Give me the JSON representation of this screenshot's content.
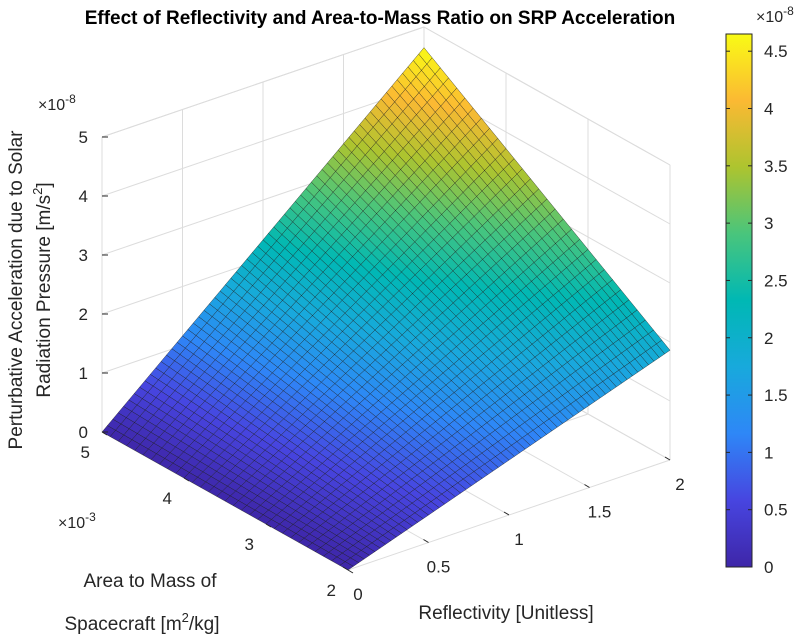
{
  "chart_data": {
    "type": "surface",
    "title": "Effect of Reflectivity and Area-to-Mass Ratio on SRP Acceleration",
    "xlabel": "Reflectivity [Unitless]",
    "ylabel_line1": "Area to Mass of",
    "ylabel_line2": "Spacecraft [m",
    "ylabel_sup": "2",
    "ylabel_end": "/kg]",
    "zlabel_line1": "Perturbative Acceleration due to Solar",
    "zlabel_line2": "Radiation Pressure [m/s",
    "zlabel_sup": "2",
    "zlabel_end": "]",
    "x_ticks": [
      "0",
      "0.5",
      "1",
      "1.5",
      "2"
    ],
    "x_tick_values": [
      0,
      0.5,
      1,
      1.5,
      2
    ],
    "y_ticks": [
      "2",
      "3",
      "4",
      "5"
    ],
    "y_tick_values": [
      2,
      3,
      4,
      5
    ],
    "y_multiplier": "×10",
    "y_multiplier_exp": "-3",
    "z_ticks": [
      "0",
      "1",
      "2",
      "3",
      "4",
      "5"
    ],
    "z_tick_values": [
      0,
      1,
      2,
      3,
      4,
      5
    ],
    "z_multiplier": "×10",
    "z_multiplier_exp": "-8",
    "xlim": [
      0,
      2
    ],
    "ylim": [
      2,
      5
    ],
    "zlim": [
      0,
      5
    ],
    "surface_corners": {
      "reflectivity": [
        0,
        2
      ],
      "area_to_mass_e3": [
        2,
        5
      ],
      "acceleration_e8": [
        [
          0.0,
          0.0
        ],
        [
          1.86,
          4.65
        ]
      ]
    },
    "colorbar": {
      "ticks": [
        "0",
        "0.5",
        "1",
        "1.5",
        "2",
        "2.5",
        "3",
        "3.5",
        "4",
        "4.5"
      ],
      "tick_values": [
        0,
        0.5,
        1,
        1.5,
        2,
        2.5,
        3,
        3.5,
        4,
        4.5
      ],
      "range": [
        0,
        4.65
      ],
      "multiplier": "×10",
      "multiplier_exp": "-8",
      "colormap": "parula"
    },
    "grid": true
  }
}
